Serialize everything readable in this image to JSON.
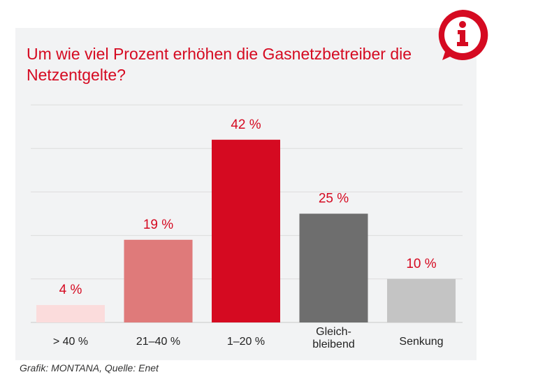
{
  "title": "Um wie viel Prozent erhöhen die Gasnetzbetreiber die Netzentgelte?",
  "credit": "Grafik: MONTANA, Quelle: Enet",
  "icon": "info-speech-bubble-icon",
  "chart_data": {
    "type": "bar",
    "title": "Um wie viel Prozent erhöhen die Gasnetzbetreiber die Netzentgelte?",
    "categories": [
      "> 40 %",
      "21–40 %",
      "1–20 %",
      "Gleich-\nbleibend",
      "Senkung"
    ],
    "values": [
      4,
      19,
      42,
      25,
      10
    ],
    "data_labels": [
      "4 %",
      "19 %",
      "42 %",
      "25 %",
      "10 %"
    ],
    "colors": [
      "#fbdcdc",
      "#df7a7a",
      "#d50a21",
      "#6e6e6e",
      "#c4c4c4"
    ],
    "ylim": [
      0,
      50
    ],
    "grid": true,
    "label_color": "#d50a21"
  }
}
